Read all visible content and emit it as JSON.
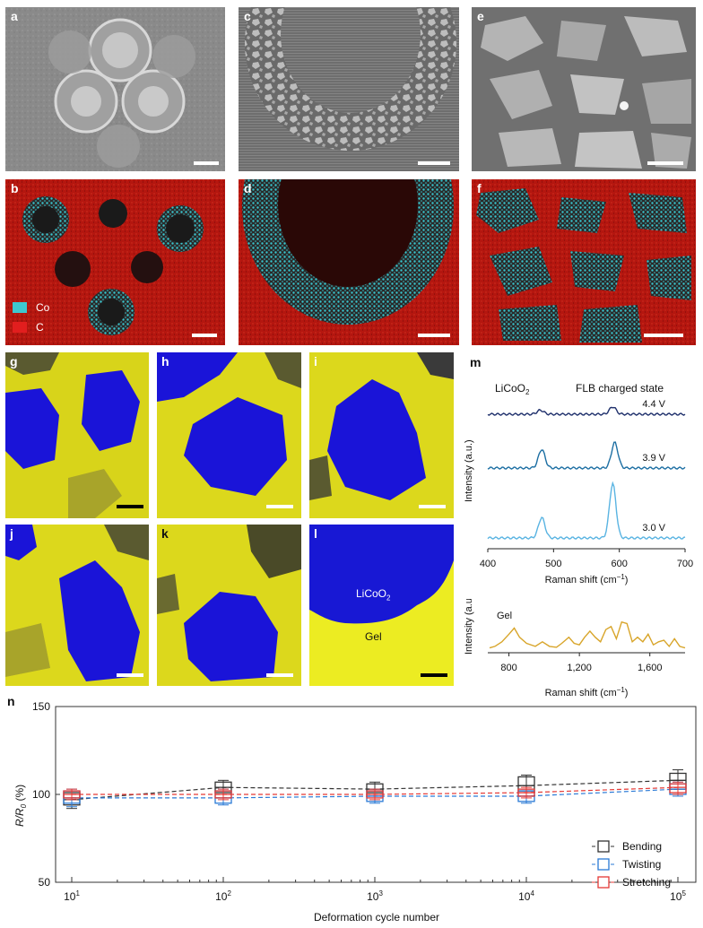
{
  "figure": {
    "panel_labels": {
      "a": "a",
      "b": "b",
      "c": "c",
      "d": "d",
      "e": "e",
      "f": "f",
      "g": "g",
      "h": "h",
      "i": "i",
      "j": "j",
      "k": "k",
      "l": "l",
      "m": "m",
      "n": "n"
    },
    "legend_b": [
      {
        "label": "Co",
        "color": "#3ec8d0"
      },
      {
        "label": "C",
        "color": "#e21e1e"
      }
    ],
    "panel_l": {
      "licoo2_label": "LiCoO",
      "licoo2_sub": "2",
      "gel_label": "Gel"
    },
    "colors": {
      "sem_gray": "#8a8a8a",
      "map_red": "#b4160f",
      "map_cyan": "#38c6cf",
      "raman_blue": "#1414e0",
      "raman_yellow": "#ecec22"
    }
  },
  "raman_top": {
    "title_main": "LiCoO",
    "title_sub": "2",
    "annotation": "FLB charged state",
    "ylabel": "Intensity (a.u.)",
    "xlabel_main": "Raman shift (cm",
    "xlabel_sup": "−1",
    "xlabel_end": ")",
    "xticks": [
      "400",
      "500",
      "600",
      "700"
    ]
  },
  "raman_gel": {
    "label": "Gel",
    "ylabel": "Intensity (a.u.)",
    "xlabel_main": "Raman shift (cm",
    "xlabel_sup": "−1",
    "xlabel_end": ")",
    "xticks": [
      "800",
      "1,200",
      "1,600"
    ]
  },
  "chart_n": {
    "ylabel_main": "R/R",
    "ylabel_sub": "0",
    "ylabel_end": " (%)",
    "xlabel": "Deformation cycle number",
    "yticks": [
      "50",
      "100",
      "150"
    ],
    "xticks": [
      {
        "base": "10",
        "exp": "1"
      },
      {
        "base": "10",
        "exp": "2"
      },
      {
        "base": "10",
        "exp": "3"
      },
      {
        "base": "10",
        "exp": "4"
      },
      {
        "base": "10",
        "exp": "5"
      }
    ]
  },
  "chart_data": [
    {
      "type": "line",
      "panel": "m",
      "xlim": [
        400,
        700
      ],
      "xticks": [
        400,
        500,
        600,
        700
      ],
      "series": [
        {
          "name": "4.4 V",
          "color": "#1e2f6b",
          "peaks": [
            {
              "x": 480,
              "height": 0.12
            },
            {
              "x": 590,
              "height": 0.22
            }
          ]
        },
        {
          "name": "3.9 V",
          "color": "#1d6fa3",
          "peaks": [
            {
              "x": 482,
              "height": 0.55
            },
            {
              "x": 593,
              "height": 0.75
            }
          ]
        },
        {
          "name": "3.0 V",
          "color": "#5ab4e2",
          "peaks": [
            {
              "x": 482,
              "height": 0.6
            },
            {
              "x": 590,
              "height": 1.6
            }
          ]
        }
      ]
    },
    {
      "type": "line",
      "panel": "m-gel",
      "xlim": [
        680,
        1800
      ],
      "xticks": [
        800,
        1200,
        1600
      ],
      "series": [
        {
          "name": "Gel",
          "color": "#d8a52a",
          "x": [
            690,
            720,
            760,
            800,
            830,
            860,
            900,
            950,
            990,
            1030,
            1070,
            1100,
            1140,
            1170,
            1200,
            1230,
            1260,
            1290,
            1320,
            1350,
            1380,
            1410,
            1440,
            1470,
            1500,
            1530,
            1560,
            1590,
            1620,
            1650,
            1680,
            1710,
            1740,
            1770,
            1800
          ],
          "y": [
            0.1,
            0.15,
            0.3,
            0.55,
            0.75,
            0.45,
            0.25,
            0.15,
            0.3,
            0.15,
            0.12,
            0.25,
            0.45,
            0.25,
            0.2,
            0.45,
            0.65,
            0.45,
            0.3,
            0.7,
            0.8,
            0.4,
            0.95,
            0.9,
            0.3,
            0.45,
            0.3,
            0.55,
            0.2,
            0.3,
            0.35,
            0.15,
            0.4,
            0.15,
            0.1
          ]
        }
      ]
    },
    {
      "type": "scatter",
      "panel": "n",
      "xscale": "log",
      "xlim": [
        10,
        100000
      ],
      "ylim": [
        50,
        150
      ],
      "yticks": [
        50,
        100,
        150
      ],
      "legend_position": "bottom-right",
      "series": [
        {
          "name": "Bending",
          "color": "#333333",
          "x": [
            10,
            100,
            1000,
            10000,
            100000
          ],
          "y": [
            97,
            104,
            103,
            105,
            108
          ],
          "q1": [
            94,
            101,
            101,
            102,
            103
          ],
          "q3": [
            101,
            107,
            106,
            110,
            112
          ],
          "low": [
            92,
            100,
            100,
            101,
            101
          ],
          "high": [
            102,
            108,
            107,
            111,
            114
          ]
        },
        {
          "name": "Twisting",
          "color": "#2a7ad6",
          "x": [
            10,
            100,
            1000,
            10000,
            100000
          ],
          "y": [
            98,
            98,
            99,
            99,
            103
          ],
          "q1": [
            95,
            95,
            96,
            96,
            100
          ],
          "q3": [
            102,
            102,
            102,
            102,
            106
          ],
          "low": [
            93,
            94,
            95,
            95,
            99
          ],
          "high": [
            103,
            103,
            103,
            103,
            107
          ]
        },
        {
          "name": "Stretching",
          "color": "#e53935",
          "x": [
            10,
            100,
            1000,
            10000,
            100000
          ],
          "y": [
            100,
            100,
            100,
            101,
            104
          ],
          "q1": [
            98,
            98,
            98,
            99,
            101
          ],
          "q3": [
            102,
            102,
            102,
            103,
            106
          ],
          "low": [
            97,
            97,
            97,
            98,
            100
          ],
          "high": [
            103,
            103,
            103,
            104,
            107
          ]
        }
      ]
    }
  ]
}
